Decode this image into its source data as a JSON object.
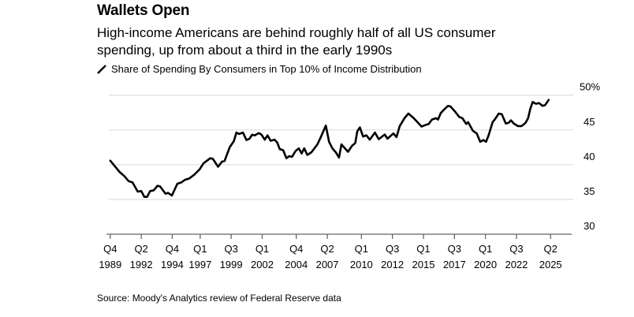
{
  "chart_data": {
    "type": "line",
    "title": "Wallets Open",
    "subtitle": "High-income Americans are behind roughly half of all US consumer spending, up from about a third in the early 1990s",
    "source": "Source: Moody's Analytics review of Federal Reserve data",
    "legend_position": "top-left",
    "grid": true,
    "ylim": [
      30,
      50
    ],
    "y_ticks": [
      "30",
      "35",
      "40",
      "45",
      "50%"
    ],
    "y_tick_values": [
      30,
      35,
      40,
      45,
      50
    ],
    "xlim": [
      1989.75,
      2025.25
    ],
    "x_ticks": [
      {
        "q": "Q4",
        "year": "1989",
        "value": 1989.75
      },
      {
        "q": "Q2",
        "year": "1992",
        "value": 1992.25
      },
      {
        "q": "Q4",
        "year": "1994",
        "value": 1994.75
      },
      {
        "q": "Q1",
        "year": "1997",
        "value": 1997.0
      },
      {
        "q": "Q3",
        "year": "1999",
        "value": 1999.5
      },
      {
        "q": "Q1",
        "year": "2002",
        "value": 2002.0
      },
      {
        "q": "Q4",
        "year": "2004",
        "value": 2004.75
      },
      {
        "q": "Q2",
        "year": "2007",
        "value": 2007.25
      },
      {
        "q": "Q1",
        "year": "2010",
        "value": 2010.0
      },
      {
        "q": "Q3",
        "year": "2012",
        "value": 2012.5
      },
      {
        "q": "Q1",
        "year": "2015",
        "value": 2015.0
      },
      {
        "q": "Q3",
        "year": "2017",
        "value": 2017.5
      },
      {
        "q": "Q1",
        "year": "2020",
        "value": 2020.0
      },
      {
        "q": "Q3",
        "year": "2022",
        "value": 2022.5
      },
      {
        "q": "Q2",
        "year": "2025",
        "value": 2025.25
      }
    ],
    "series": [
      {
        "name": "Share of Spending By Consumers in Top 10% of Income Distribution",
        "color": "#000000",
        "x": [
          1989.75,
          1990.06,
          1990.5,
          1990.91,
          1991.23,
          1991.55,
          1991.97,
          1992.25,
          1992.5,
          1992.72,
          1992.97,
          1993.25,
          1993.56,
          1993.77,
          1994.2,
          1994.41,
          1994.72,
          1995.16,
          1995.47,
          1995.78,
          1996.11,
          1996.53,
          1996.95,
          1997.27,
          1997.81,
          1998.02,
          1998.44,
          1998.77,
          1998.97,
          1999.39,
          1999.71,
          1999.92,
          2000.13,
          2000.45,
          2000.73,
          2000.98,
          2001.19,
          2001.41,
          2001.72,
          2001.94,
          2002.21,
          2002.43,
          2002.68,
          2003.0,
          2003.21,
          2003.42,
          2003.69,
          2003.95,
          2004.16,
          2004.41,
          2004.69,
          2004.96,
          2005.18,
          2005.39,
          2005.64,
          2005.97,
          2006.45,
          2006.7,
          2007.13,
          2007.39,
          2007.66,
          2007.93,
          2008.19,
          2008.39,
          2008.92,
          2009.25,
          2009.5,
          2009.67,
          2009.88,
          2010.13,
          2010.4,
          2010.67,
          2011.09,
          2011.4,
          2011.88,
          2012.1,
          2012.58,
          2012.83,
          2013.09,
          2013.47,
          2013.79,
          2014.22,
          2014.85,
          2015.21,
          2015.43,
          2015.69,
          2016.01,
          2016.18,
          2016.4,
          2016.65,
          2016.97,
          2017.18,
          2017.5,
          2017.88,
          2018.14,
          2018.45,
          2018.6,
          2018.98,
          2019.3,
          2019.57,
          2019.83,
          2020.05,
          2020.25,
          2020.58,
          2020.78,
          2021.07,
          2021.32,
          2021.64,
          2021.85,
          2022.06,
          2022.28,
          2022.62,
          2022.91,
          2023.23,
          2023.44,
          2023.61,
          2023.81,
          2024.07,
          2024.32,
          2024.6,
          2024.81,
          2025.1
        ],
        "y": [
          40.58,
          39.9,
          38.96,
          38.31,
          37.64,
          37.44,
          36.13,
          36.2,
          35.37,
          35.37,
          36.2,
          36.31,
          36.96,
          36.88,
          35.83,
          35.94,
          35.57,
          37.26,
          37.44,
          37.83,
          38.01,
          38.57,
          39.33,
          40.2,
          40.92,
          40.84,
          39.71,
          40.46,
          40.54,
          42.53,
          43.37,
          44.62,
          44.42,
          44.62,
          43.55,
          43.74,
          44.31,
          44.23,
          44.54,
          44.34,
          43.6,
          44.23,
          43.44,
          43.6,
          43.21,
          42.24,
          42.08,
          40.92,
          41.22,
          41.14,
          41.97,
          42.35,
          41.6,
          42.35,
          41.4,
          41.79,
          42.92,
          43.86,
          45.63,
          43.29,
          42.35,
          41.79,
          41.03,
          42.92,
          41.86,
          42.73,
          43.1,
          44.8,
          45.36,
          44.05,
          44.23,
          43.6,
          44.62,
          43.67,
          44.34,
          43.74,
          44.5,
          43.97,
          45.55,
          46.69,
          47.36,
          46.69,
          45.48,
          45.75,
          45.86,
          46.49,
          46.69,
          46.49,
          47.44,
          47.9,
          48.46,
          48.38,
          47.74,
          46.88,
          46.69,
          45.86,
          46.12,
          44.88,
          44.5,
          43.29,
          43.55,
          43.29,
          44.23,
          46.12,
          46.57,
          47.36,
          47.25,
          45.93,
          46.01,
          46.38,
          45.93,
          45.55,
          45.55,
          46.01,
          46.69,
          48.0,
          49.03,
          48.76,
          48.87,
          48.46,
          48.57,
          49.32
        ]
      }
    ]
  }
}
